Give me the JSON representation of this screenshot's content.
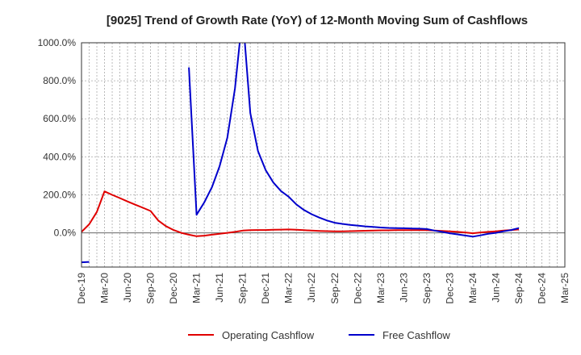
{
  "chart_data": {
    "type": "line",
    "title": "[9025]  Trend of Growth Rate (YoY) of 12-Month Moving Sum of Cashflows",
    "xlabel": "",
    "ylabel": "",
    "x_ticks": [
      "Dec-19",
      "Mar-20",
      "Jun-20",
      "Sep-20",
      "Dec-20",
      "Mar-21",
      "Jun-21",
      "Sep-21",
      "Dec-21",
      "Mar-22",
      "Jun-22",
      "Sep-22",
      "Dec-22",
      "Mar-23",
      "Jun-23",
      "Sep-23",
      "Dec-23",
      "Mar-24",
      "Jun-24",
      "Sep-24",
      "Dec-24",
      "Mar-25"
    ],
    "y_ticks": [
      "0.0%",
      "200.0%",
      "400.0%",
      "600.0%",
      "800.0%",
      "1000.0%"
    ],
    "ylim": [
      -180,
      1000
    ],
    "grid": true,
    "legend_position": "bottom",
    "series": [
      {
        "name": "Operating Cashflow",
        "color": "#e00000",
        "points": [
          [
            "2019-12",
            5
          ],
          [
            "2020-01",
            45
          ],
          [
            "2020-02",
            110
          ],
          [
            "2020-03",
            218
          ],
          [
            "2020-04",
            200
          ],
          [
            "2020-05",
            183
          ],
          [
            "2020-06",
            165
          ],
          [
            "2020-07",
            148
          ],
          [
            "2020-08",
            132
          ],
          [
            "2020-09",
            115
          ],
          [
            "2020-10",
            65
          ],
          [
            "2020-11",
            35
          ],
          [
            "2020-12",
            15
          ],
          [
            "2021-01",
            0
          ],
          [
            "2021-02",
            -10
          ],
          [
            "2021-03",
            -18
          ],
          [
            "2021-04",
            -15
          ],
          [
            "2021-05",
            -10
          ],
          [
            "2021-06",
            -5
          ],
          [
            "2021-07",
            0
          ],
          [
            "2021-08",
            5
          ],
          [
            "2021-09",
            12
          ],
          [
            "2021-10",
            14
          ],
          [
            "2021-11",
            15
          ],
          [
            "2021-12",
            15
          ],
          [
            "2022-01",
            16
          ],
          [
            "2022-02",
            17
          ],
          [
            "2022-03",
            18
          ],
          [
            "2022-04",
            16
          ],
          [
            "2022-05",
            14
          ],
          [
            "2022-06",
            12
          ],
          [
            "2022-07",
            10
          ],
          [
            "2022-08",
            9
          ],
          [
            "2022-09",
            8
          ],
          [
            "2022-10",
            8
          ],
          [
            "2022-11",
            9
          ],
          [
            "2022-12",
            10
          ],
          [
            "2023-01",
            11
          ],
          [
            "2023-02",
            12
          ],
          [
            "2023-03",
            13
          ],
          [
            "2023-04",
            13
          ],
          [
            "2023-05",
            14
          ],
          [
            "2023-06",
            14
          ],
          [
            "2023-07",
            14
          ],
          [
            "2023-08",
            14
          ],
          [
            "2023-09",
            14
          ],
          [
            "2023-10",
            12
          ],
          [
            "2023-11",
            10
          ],
          [
            "2023-12",
            8
          ],
          [
            "2024-01",
            5
          ],
          [
            "2024-02",
            2
          ],
          [
            "2024-03",
            -2
          ],
          [
            "2024-04",
            2
          ],
          [
            "2024-05",
            5
          ],
          [
            "2024-06",
            8
          ],
          [
            "2024-07",
            12
          ],
          [
            "2024-08",
            15
          ],
          [
            "2024-09",
            18
          ]
        ]
      },
      {
        "name": "Free Cashflow",
        "color": "#0000cc",
        "points": [
          [
            "2019-12",
            -155
          ],
          [
            "2020-01",
            -153
          ],
          [
            "2020-02",
            null
          ],
          [
            "2020-03",
            null
          ],
          [
            "2020-04",
            null
          ],
          [
            "2020-05",
            null
          ],
          [
            "2020-06",
            null
          ],
          [
            "2020-07",
            null
          ],
          [
            "2020-08",
            null
          ],
          [
            "2020-09",
            null
          ],
          [
            "2020-10",
            null
          ],
          [
            "2020-11",
            null
          ],
          [
            "2020-12",
            null
          ],
          [
            "2021-01",
            null
          ],
          [
            "2021-02",
            870
          ],
          [
            "2021-03",
            95
          ],
          [
            "2021-04",
            160
          ],
          [
            "2021-05",
            240
          ],
          [
            "2021-06",
            350
          ],
          [
            "2021-07",
            500
          ],
          [
            "2021-08",
            760
          ],
          [
            "2021-09",
            1150
          ],
          [
            "2021-10",
            630
          ],
          [
            "2021-11",
            430
          ],
          [
            "2021-12",
            330
          ],
          [
            "2022-01",
            265
          ],
          [
            "2022-02",
            220
          ],
          [
            "2022-03",
            190
          ],
          [
            "2022-04",
            150
          ],
          [
            "2022-05",
            120
          ],
          [
            "2022-06",
            98
          ],
          [
            "2022-07",
            80
          ],
          [
            "2022-08",
            65
          ],
          [
            "2022-09",
            53
          ],
          [
            "2022-10",
            47
          ],
          [
            "2022-11",
            42
          ],
          [
            "2022-12",
            38
          ],
          [
            "2023-01",
            34
          ],
          [
            "2023-02",
            31
          ],
          [
            "2023-03",
            28
          ],
          [
            "2023-04",
            26
          ],
          [
            "2023-05",
            25
          ],
          [
            "2023-06",
            24
          ],
          [
            "2023-07",
            23
          ],
          [
            "2023-08",
            22
          ],
          [
            "2023-09",
            20
          ],
          [
            "2023-10",
            12
          ],
          [
            "2023-11",
            5
          ],
          [
            "2023-12",
            -2
          ],
          [
            "2024-01",
            -8
          ],
          [
            "2024-02",
            -14
          ],
          [
            "2024-03",
            -20
          ],
          [
            "2024-04",
            -13
          ],
          [
            "2024-05",
            -5
          ],
          [
            "2024-06",
            0
          ],
          [
            "2024-07",
            8
          ],
          [
            "2024-08",
            15
          ],
          [
            "2024-09",
            25
          ]
        ]
      }
    ]
  }
}
